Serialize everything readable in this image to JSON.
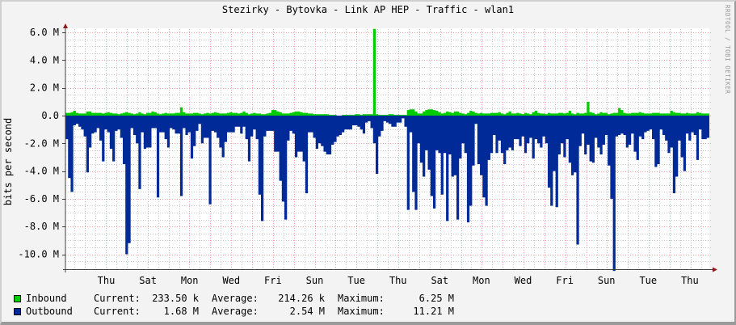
{
  "title": "Stezirky - Bytovka - Link AP HEP - Traffic - wlan1",
  "watermark": "RRDTOOL / TOBI OETIKER",
  "y_axis_label": "bits per second",
  "colors": {
    "inbound": "#00cc00",
    "outbound": "#002a97",
    "grid_major": "#e8a0a0",
    "grid_minor": "#c8c8c8",
    "axis": "#404040",
    "arrow": "#8b1a1a",
    "background": "#f3f3f3",
    "plot_bg": "#ffffff"
  },
  "legend": [
    {
      "name": "Inbound",
      "color": "#00cc00",
      "current_label": "Current:",
      "current": "233.50 k",
      "average_label": "Average:",
      "average": "214.26 k",
      "maximum_label": "Maximum:",
      "maximum": "6.25 M"
    },
    {
      "name": "Outbound",
      "color": "#002a97",
      "current_label": "Current:",
      "current": "1.68 M",
      "average_label": "Average:",
      "average": "2.54 M",
      "maximum_label": "Maximum:",
      "maximum": "11.21 M"
    }
  ],
  "chart_data": {
    "type": "area",
    "title": "Stezirky - Bytovka - Link AP HEP - Traffic - wlan1",
    "xlabel": "",
    "ylabel": "bits per second",
    "ylim": [
      -11.2,
      6.3
    ],
    "yticks": [
      6.0,
      4.0,
      2.0,
      0.0,
      -2.0,
      -4.0,
      -6.0,
      -8.0,
      -10.0
    ],
    "ytick_labels": [
      "6.0 M",
      "4.0 M",
      "2.0 M",
      "0.0",
      "-2.0 M",
      "-4.0 M",
      "-6.0 M",
      "-8.0 M",
      "-10.0 M"
    ],
    "x_tick_labels": [
      "Thu",
      "Sat",
      "Mon",
      "Wed",
      "Fri",
      "Sun",
      "Tue",
      "Thu",
      "Sat",
      "Mon",
      "Wed",
      "Fri",
      "Sun",
      "Tue",
      "Thu"
    ],
    "grid": true,
    "legend_position": "bottom",
    "units": "Mbit/s",
    "series": [
      {
        "name": "Inbound",
        "values": [
          0.2,
          0.2,
          0.25,
          0.35,
          0.2,
          0.15,
          0.15,
          0.15,
          0.3,
          0.3,
          0.2,
          0.2,
          0.2,
          0.2,
          0.15,
          0.2,
          0.25,
          0.2,
          0.15,
          0.15,
          0.1,
          0.15,
          0.2,
          0.25,
          0.2,
          0.15,
          0.1,
          0.15,
          0.25,
          0.15,
          0.1,
          0.2,
          0.2,
          0.3,
          0.25,
          0.15,
          0.1,
          0.15,
          0.2,
          0.15,
          0.15,
          0.15,
          0.2,
          0.2,
          0.6,
          0.25,
          0.15,
          0.15,
          0.15,
          0.2,
          0.2,
          0.15,
          0.1,
          0.15,
          0.2,
          0.15,
          0.2,
          0.25,
          0.2,
          0.15,
          0.15,
          0.15,
          0.2,
          0.25,
          0.2,
          0.2,
          0.15,
          0.2,
          0.3,
          0.2,
          0.1,
          0.15,
          0.2,
          0.15,
          0.15,
          0.1,
          0.1,
          0.15,
          0.2,
          0.4,
          0.4,
          0.3,
          0.25,
          0.15,
          0.15,
          0.15,
          0.2,
          0.25,
          0.3,
          0.3,
          0.25,
          0.2,
          0.2,
          0.15,
          0.15,
          0.1,
          0.1,
          0.1,
          0.1,
          0.1,
          0.1,
          0.05,
          0.05,
          0.05,
          0.0,
          0.0,
          0.05,
          0.05,
          0.05,
          0.05,
          0.05,
          0.1,
          0.1,
          0.05,
          0.1,
          0.1,
          0.1,
          0.1,
          6.25,
          0.1,
          0.05,
          0.05,
          0.05,
          0.05,
          0.1,
          0.1,
          0.05,
          0.05,
          0.05,
          0.05,
          0.05,
          0.4,
          0.45,
          0.45,
          0.3,
          0.15,
          0.15,
          0.3,
          0.4,
          0.45,
          0.45,
          0.4,
          0.35,
          0.25,
          0.15,
          0.2,
          0.3,
          0.25,
          0.2,
          0.3,
          0.3,
          0.2,
          0.15,
          0.1,
          0.2,
          0.35,
          0.3,
          0.2,
          0.15,
          0.2,
          0.15,
          0.15,
          0.15,
          0.2,
          0.2,
          0.2,
          0.25,
          0.15,
          0.1,
          0.2,
          0.3,
          0.15,
          0.15,
          0.2,
          0.15,
          0.1,
          0.2,
          0.15,
          0.1,
          0.25,
          0.35,
          0.2,
          0.15,
          0.15,
          0.1,
          0.2,
          0.15,
          0.15,
          0.15,
          0.2,
          0.2,
          0.15,
          0.2,
          0.35,
          0.15,
          0.1,
          0.2,
          0.15,
          0.15,
          0.2,
          1.0,
          0.25,
          0.2,
          0.1,
          0.15,
          0.25,
          0.2,
          0.2,
          0.1,
          0.15,
          0.2,
          0.2,
          0.55,
          0.4,
          0.2,
          0.15,
          0.15,
          0.2,
          0.2,
          0.2,
          0.25,
          0.2,
          0.15,
          0.15,
          0.15,
          0.2,
          0.2,
          0.2,
          0.15,
          0.15,
          0.15,
          0.15,
          0.35,
          0.25,
          0.2,
          0.2,
          0.15,
          0.15,
          0.2,
          0.15,
          0.15,
          0.15,
          0.25,
          0.2,
          0.15,
          0.15,
          0.15,
          0.15,
          0.3
        ]
      },
      {
        "name": "Outbound",
        "values": [
          -1.7,
          -4.5,
          -5.5,
          -0.7,
          -0.6,
          -0.8,
          -1.0,
          -1.5,
          -4.1,
          -2.3,
          -1.3,
          -1.2,
          -0.9,
          -1.8,
          -3.3,
          -1.0,
          -1.2,
          -2.4,
          -3.3,
          -1.1,
          -1.0,
          -1.6,
          -3.5,
          -10.0,
          -9.2,
          -0.9,
          -1.4,
          -2.0,
          -5.3,
          -1.2,
          -2.4,
          -2.3,
          -2.3,
          -0.9,
          -0.9,
          -5.9,
          -1.2,
          -1.2,
          -1.7,
          -2.3,
          -0.9,
          -1.0,
          -1.3,
          -1.3,
          -5.8,
          -0.9,
          -1.4,
          -1.2,
          -3.1,
          -2.2,
          -1.1,
          -0.6,
          -2.0,
          -1.6,
          -1.6,
          -6.4,
          -1.1,
          -1.2,
          -1.6,
          -2.3,
          -3.0,
          -1.9,
          -1.2,
          -1.2,
          -1.2,
          -0.8,
          -0.8,
          -1.3,
          -0.8,
          -1.7,
          -3.3,
          -1.5,
          -1.0,
          -1.7,
          -5.7,
          -7.6,
          -1.5,
          -1.1,
          -1.1,
          -1.1,
          -2.6,
          -2.6,
          -4.7,
          -6.2,
          -7.5,
          -1.8,
          -1.1,
          -1.3,
          -3.0,
          -2.6,
          -2.6,
          -3.3,
          -5.6,
          -1.2,
          -1.2,
          -1.6,
          -2.4,
          -2.0,
          -2.2,
          -2.6,
          -2.8,
          -2.8,
          -2.1,
          -1.9,
          -1.5,
          -1.4,
          -1.2,
          -1.0,
          -1.0,
          -1.0,
          -0.7,
          -0.7,
          -0.8,
          -1.0,
          -1.3,
          -0.5,
          -0.4,
          -0.9,
          -2.0,
          -4.2,
          -1.5,
          -1.1,
          -0.4,
          -0.5,
          -0.6,
          -0.8,
          -0.8,
          -0.5,
          -0.5,
          -0.2,
          -0.8,
          -6.8,
          -1.2,
          -5.5,
          -6.8,
          -2.0,
          -3.4,
          -4.4,
          -2.5,
          -3.9,
          -5.8,
          -6.7,
          -2.5,
          -2.7,
          -5.7,
          -2.7,
          -7.6,
          -2.8,
          -4.4,
          -4.3,
          -7.5,
          -3.1,
          -2.0,
          -2.7,
          -7.7,
          -6.5,
          -3.6,
          -0.6,
          -3.5,
          -4.3,
          -5.9,
          -6.5,
          -3.2,
          -2.7,
          -1.4,
          -2.7,
          -1.8,
          -2.7,
          -3.5,
          -2.5,
          -2.3,
          -2.5,
          -1.7,
          -1.7,
          -2.2,
          -1.5,
          -2.7,
          -2.0,
          -1.6,
          -3.1,
          -1.7,
          -2.0,
          -2.3,
          -1.5,
          -2.0,
          -5.2,
          -6.5,
          -4.0,
          -6.6,
          -2.8,
          -2.0,
          -3.0,
          -1.7,
          -3.4,
          -4.3,
          -4.1,
          -9.3,
          -2.2,
          -1.3,
          -2.8,
          -2.1,
          -3.3,
          -3.4,
          -1.6,
          -2.3,
          -2.8,
          -2.1,
          -1.4,
          -3.6,
          -6.0,
          -11.2,
          -1.5,
          -1.4,
          -1.3,
          -1.4,
          -2.3,
          -2.1,
          -1.3,
          -2.6,
          -3.2,
          -1.5,
          -1.7,
          -1.2,
          -1.1,
          -1.0,
          -1.7,
          -3.7,
          -3.5,
          -1.0,
          -1.4,
          -1.8,
          -2.7,
          -2.3,
          -5.6,
          -4.4,
          -1.8,
          -3.0,
          -4.0,
          -1.3,
          -1.8,
          -1.2,
          -1.4,
          -3.2,
          -1.0,
          -1.7,
          -1.7,
          -1.6
        ]
      }
    ]
  }
}
